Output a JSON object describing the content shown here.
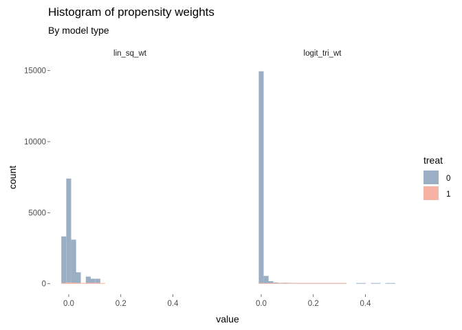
{
  "chart_data": {
    "type": "bar",
    "title": "Histogram of propensity weights",
    "subtitle": "By model type",
    "xlabel": "value",
    "ylabel": "count",
    "grid": false,
    "legend": {
      "title": "treat",
      "placement": "right",
      "entries": [
        {
          "label": "0",
          "color": "#9aafc4"
        },
        {
          "label": "1",
          "color": "#f6b2a2"
        }
      ]
    },
    "y_ticks": [
      {
        "value": 0,
        "label": "0"
      },
      {
        "value": 5000,
        "label": "5000"
      },
      {
        "value": 10000,
        "label": "10000"
      },
      {
        "value": 15000,
        "label": "15000"
      }
    ],
    "ylim": [
      -500,
      16000
    ],
    "bin_width": 0.0187,
    "facets": [
      {
        "label": "lin_sq_wt",
        "xlim": [
          -0.05,
          0.52
        ],
        "x_ticks": [
          {
            "value": 0.0,
            "label": "0.0"
          },
          {
            "value": 0.2,
            "label": "0.2"
          },
          {
            "value": 0.4,
            "label": "0.4"
          }
        ],
        "series": [
          {
            "name": "0",
            "color": "#9aafc4",
            "bins": [
              {
                "x": -0.019,
                "count": 3330
              },
              {
                "x": 0.0,
                "count": 7400
              },
              {
                "x": 0.019,
                "count": 3100
              },
              {
                "x": 0.037,
                "count": 800
              },
              {
                "x": 0.075,
                "count": 500
              },
              {
                "x": 0.093,
                "count": 350
              },
              {
                "x": 0.112,
                "count": 350
              }
            ]
          },
          {
            "name": "1",
            "color": "#f6b2a2",
            "bins": [
              {
                "x": -0.019,
                "count": 60
              },
              {
                "x": 0.0,
                "count": 90
              },
              {
                "x": 0.019,
                "count": 80
              },
              {
                "x": 0.037,
                "count": 60
              },
              {
                "x": 0.056,
                "count": 50
              },
              {
                "x": 0.075,
                "count": 60
              },
              {
                "x": 0.093,
                "count": 70
              },
              {
                "x": 0.112,
                "count": 70
              },
              {
                "x": 0.131,
                "count": 40
              }
            ]
          }
        ]
      },
      {
        "label": "logit_tri_wt",
        "xlim": [
          -0.05,
          0.52
        ],
        "x_ticks": [
          {
            "value": 0.0,
            "label": "0.0"
          },
          {
            "value": 0.2,
            "label": "0.2"
          },
          {
            "value": 0.4,
            "label": "0.4"
          }
        ],
        "series": [
          {
            "name": "0",
            "color": "#9aafc4",
            "bins": [
              {
                "x": 0.0,
                "count": 14950
              },
              {
                "x": 0.019,
                "count": 550
              },
              {
                "x": 0.037,
                "count": 180
              },
              {
                "x": 0.056,
                "count": 90
              },
              {
                "x": 0.075,
                "count": 60
              },
              {
                "x": 0.093,
                "count": 70
              },
              {
                "x": 0.112,
                "count": 60
              },
              {
                "x": 0.131,
                "count": 30
              },
              {
                "x": 0.15,
                "count": 20
              },
              {
                "x": 0.168,
                "count": 20
              },
              {
                "x": 0.187,
                "count": 20
              },
              {
                "x": 0.206,
                "count": 15
              },
              {
                "x": 0.224,
                "count": 15
              },
              {
                "x": 0.243,
                "count": 10
              },
              {
                "x": 0.262,
                "count": 10
              },
              {
                "x": 0.28,
                "count": 10
              },
              {
                "x": 0.299,
                "count": 8
              },
              {
                "x": 0.318,
                "count": 8
              },
              {
                "x": 0.374,
                "count": 5
              },
              {
                "x": 0.392,
                "count": 5
              },
              {
                "x": 0.43,
                "count": 5
              },
              {
                "x": 0.449,
                "count": 5
              },
              {
                "x": 0.486,
                "count": 5
              },
              {
                "x": 0.505,
                "count": 5
              }
            ]
          },
          {
            "name": "1",
            "color": "#f6b2a2",
            "bins": [
              {
                "x": 0.0,
                "count": 20
              },
              {
                "x": 0.019,
                "count": 20
              },
              {
                "x": 0.037,
                "count": 15
              },
              {
                "x": 0.056,
                "count": 15
              },
              {
                "x": 0.075,
                "count": 15
              },
              {
                "x": 0.093,
                "count": 15
              },
              {
                "x": 0.112,
                "count": 15
              },
              {
                "x": 0.131,
                "count": 20
              },
              {
                "x": 0.15,
                "count": 20
              },
              {
                "x": 0.168,
                "count": 25
              },
              {
                "x": 0.187,
                "count": 25
              },
              {
                "x": 0.206,
                "count": 25
              },
              {
                "x": 0.224,
                "count": 25
              },
              {
                "x": 0.243,
                "count": 25
              },
              {
                "x": 0.262,
                "count": 25
              },
              {
                "x": 0.28,
                "count": 25
              },
              {
                "x": 0.299,
                "count": 20
              },
              {
                "x": 0.318,
                "count": 15
              }
            ]
          }
        ]
      }
    ]
  }
}
